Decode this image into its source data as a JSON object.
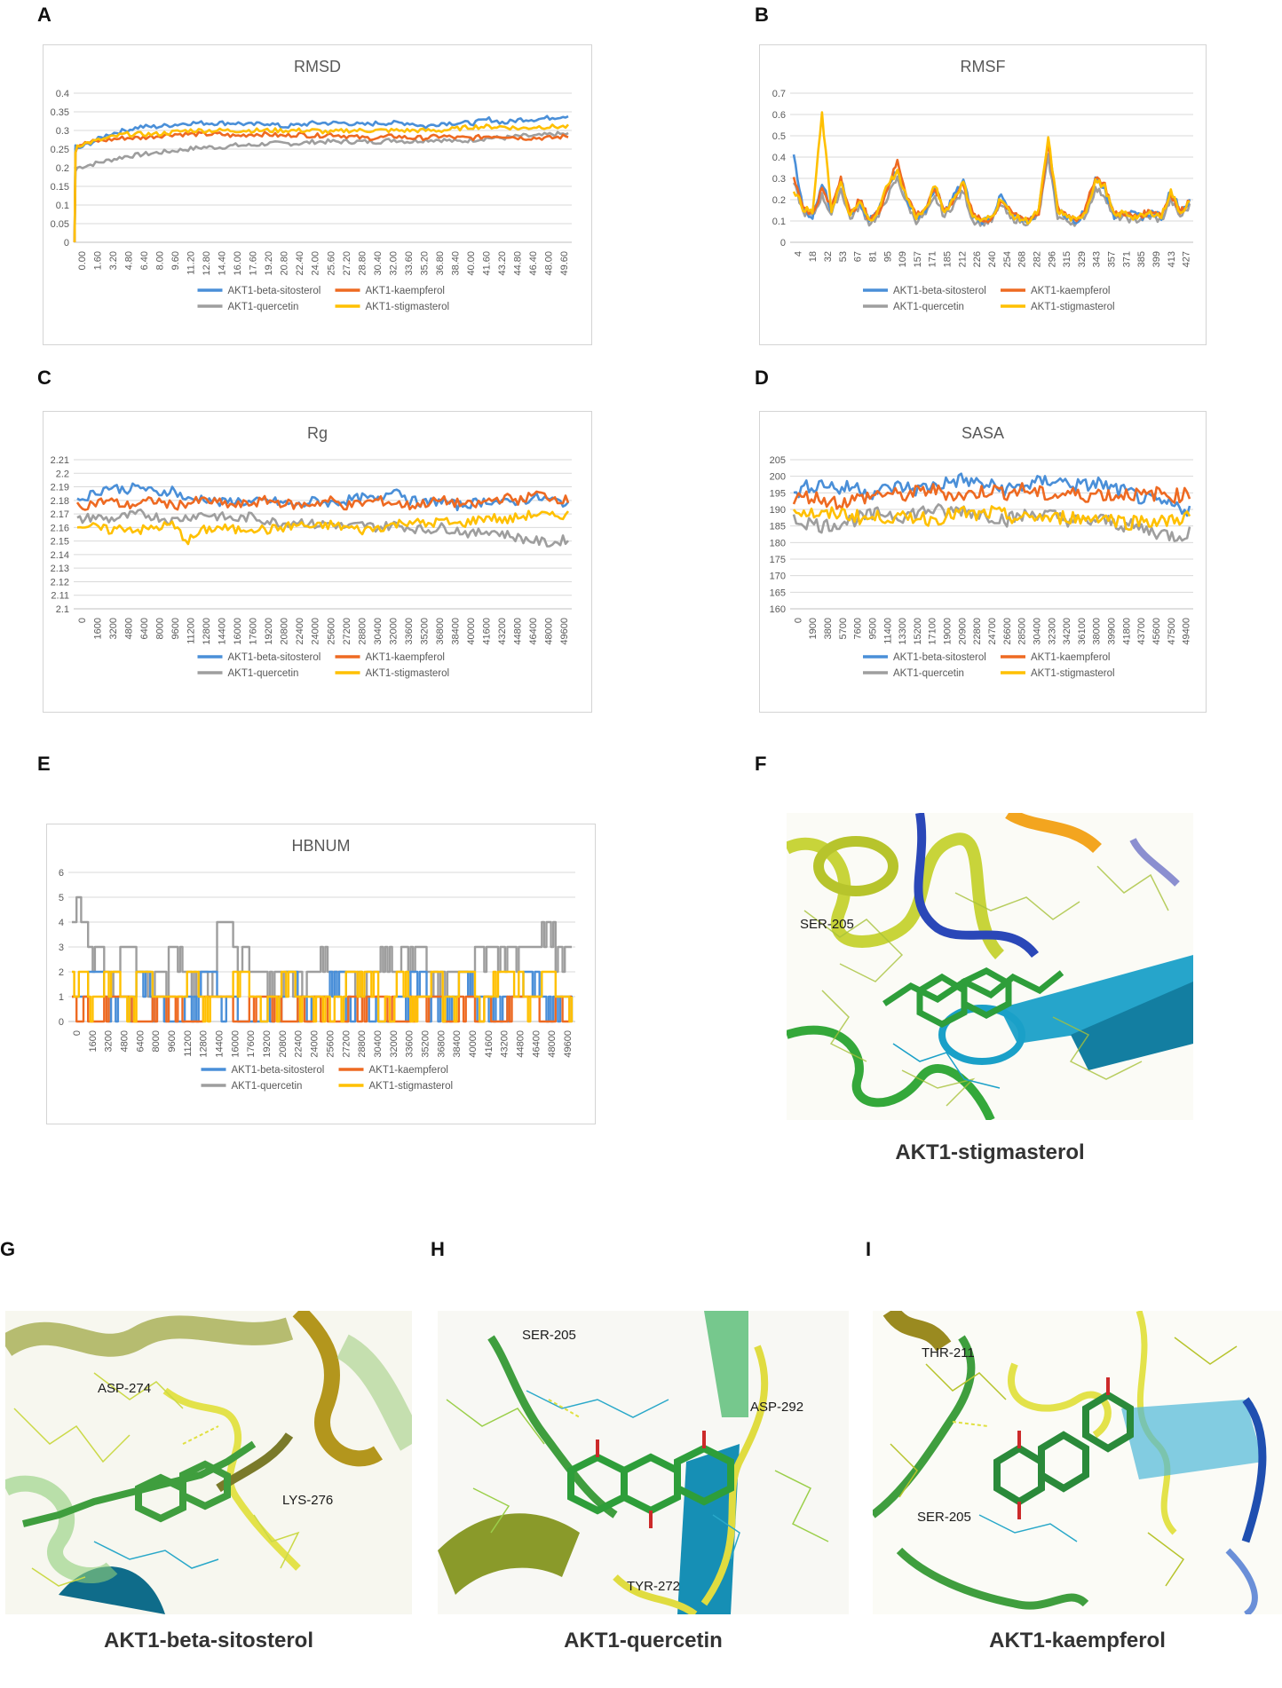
{
  "panels": {
    "A": "A",
    "B": "B",
    "C": "C",
    "D": "D",
    "E": "E",
    "F": "F",
    "G": "G",
    "H": "H",
    "I": "I"
  },
  "colors": {
    "beta_sitosterol": "#4a8fd8",
    "kaempferol": "#ee6a22",
    "quercetin": "#9e9e9e",
    "stigmasterol": "#ffc000"
  },
  "legend": [
    "AKT1-beta-sitosterol",
    "AKT1-kaempferol",
    "AKT1-quercetin",
    "AKT1-stigmasterol"
  ],
  "chart_data": [
    {
      "id": "rmsd",
      "type": "line",
      "title": "RMSD",
      "ylim": [
        0,
        0.4
      ],
      "yticks": [
        "0",
        "0.05",
        "0.1",
        "0.15",
        "0.2",
        "0.25",
        "0.3",
        "0.35",
        "0.4"
      ],
      "xticks": [
        "0.00",
        "1.60",
        "3.20",
        "4.80",
        "6.40",
        "8.00",
        "9.60",
        "11.20",
        "12.80",
        "14.40",
        "16.00",
        "17.60",
        "19.20",
        "20.80",
        "22.40",
        "24.00",
        "25.60",
        "27.20",
        "28.80",
        "30.40",
        "32.00",
        "33.60",
        "35.20",
        "36.80",
        "38.40",
        "40.00",
        "41.60",
        "43.20",
        "44.80",
        "46.40",
        "48.00",
        "49.60"
      ],
      "series": [
        {
          "name": "AKT1-beta-sitosterol",
          "start": 0.26,
          "values": [
            0.25,
            0.27,
            0.29,
            0.3,
            0.31,
            0.31,
            0.315,
            0.32,
            0.32,
            0.32,
            0.32,
            0.315,
            0.32,
            0.31,
            0.315,
            0.32,
            0.32,
            0.32,
            0.315,
            0.32,
            0.32,
            0.32,
            0.31,
            0.32,
            0.32,
            0.32,
            0.33,
            0.32,
            0.33,
            0.33,
            0.335,
            0.34
          ]
        },
        {
          "name": "AKT1-kaempferol",
          "start": 0.24,
          "values": [
            0.26,
            0.27,
            0.275,
            0.28,
            0.28,
            0.285,
            0.29,
            0.29,
            0.29,
            0.29,
            0.285,
            0.29,
            0.29,
            0.285,
            0.29,
            0.285,
            0.29,
            0.285,
            0.28,
            0.28,
            0.285,
            0.28,
            0.28,
            0.285,
            0.28,
            0.28,
            0.285,
            0.285,
            0.28,
            0.28,
            0.28,
            0.285
          ]
        },
        {
          "name": "AKT1-quercetin",
          "start": 0.19,
          "values": [
            0.2,
            0.21,
            0.22,
            0.23,
            0.235,
            0.24,
            0.245,
            0.25,
            0.255,
            0.255,
            0.26,
            0.26,
            0.265,
            0.265,
            0.265,
            0.27,
            0.27,
            0.27,
            0.27,
            0.27,
            0.275,
            0.27,
            0.275,
            0.275,
            0.27,
            0.275,
            0.28,
            0.28,
            0.285,
            0.285,
            0.29,
            0.29
          ]
        },
        {
          "name": "AKT1-stigmasterol",
          "start": 0.24,
          "values": [
            0.26,
            0.27,
            0.28,
            0.29,
            0.29,
            0.29,
            0.295,
            0.3,
            0.3,
            0.3,
            0.3,
            0.3,
            0.3,
            0.3,
            0.3,
            0.3,
            0.295,
            0.3,
            0.3,
            0.3,
            0.3,
            0.3,
            0.3,
            0.3,
            0.305,
            0.31,
            0.31,
            0.31,
            0.305,
            0.31,
            0.31,
            0.31
          ]
        }
      ]
    },
    {
      "id": "rmsf",
      "type": "line",
      "title": "RMSF",
      "ylim": [
        0,
        0.7
      ],
      "yticks": [
        "0",
        "0.1",
        "0.2",
        "0.3",
        "0.4",
        "0.5",
        "0.6",
        "0.7"
      ],
      "xticks": [
        "4",
        "18",
        "32",
        "53",
        "67",
        "81",
        "95",
        "109",
        "157",
        "171",
        "185",
        "212",
        "226",
        "240",
        "254",
        "268",
        "282",
        "296",
        "315",
        "329",
        "343",
        "357",
        "371",
        "385",
        "399",
        "413",
        "427"
      ],
      "series": [
        {
          "name": "AKT1-beta-sitosterol",
          "values": [
            0.42,
            0.15,
            0.12,
            0.28,
            0.15,
            0.3,
            0.12,
            0.18,
            0.1,
            0.15,
            0.27,
            0.35,
            0.2,
            0.12,
            0.15,
            0.26,
            0.14,
            0.22,
            0.29,
            0.12,
            0.1,
            0.12,
            0.22,
            0.13,
            0.11,
            0.1,
            0.15,
            0.47,
            0.15,
            0.12,
            0.1,
            0.15,
            0.3,
            0.25,
            0.12,
            0.15,
            0.13,
            0.12,
            0.14,
            0.12,
            0.25,
            0.15,
            0.19
          ]
        },
        {
          "name": "AKT1-kaempferol",
          "values": [
            0.3,
            0.17,
            0.13,
            0.25,
            0.16,
            0.31,
            0.13,
            0.2,
            0.11,
            0.14,
            0.26,
            0.38,
            0.22,
            0.13,
            0.16,
            0.25,
            0.15,
            0.2,
            0.28,
            0.13,
            0.1,
            0.11,
            0.2,
            0.14,
            0.12,
            0.11,
            0.14,
            0.46,
            0.16,
            0.13,
            0.11,
            0.16,
            0.31,
            0.27,
            0.13,
            0.14,
            0.12,
            0.13,
            0.15,
            0.13,
            0.23,
            0.14,
            0.2
          ]
        },
        {
          "name": "AKT1-quercetin",
          "values": [
            0.28,
            0.14,
            0.12,
            0.22,
            0.13,
            0.25,
            0.11,
            0.17,
            0.09,
            0.12,
            0.22,
            0.3,
            0.18,
            0.1,
            0.13,
            0.21,
            0.12,
            0.18,
            0.24,
            0.1,
            0.09,
            0.1,
            0.18,
            0.11,
            0.1,
            0.09,
            0.13,
            0.4,
            0.12,
            0.1,
            0.09,
            0.13,
            0.25,
            0.22,
            0.11,
            0.12,
            0.1,
            0.11,
            0.12,
            0.1,
            0.2,
            0.12,
            0.17
          ]
        },
        {
          "name": "AKT1-stigmasterol",
          "values": [
            0.25,
            0.16,
            0.14,
            0.6,
            0.15,
            0.28,
            0.12,
            0.19,
            0.1,
            0.15,
            0.28,
            0.33,
            0.21,
            0.12,
            0.15,
            0.27,
            0.14,
            0.21,
            0.28,
            0.12,
            0.1,
            0.12,
            0.21,
            0.13,
            0.11,
            0.1,
            0.15,
            0.49,
            0.15,
            0.12,
            0.1,
            0.15,
            0.29,
            0.26,
            0.12,
            0.14,
            0.12,
            0.12,
            0.14,
            0.12,
            0.24,
            0.14,
            0.19
          ]
        }
      ]
    },
    {
      "id": "rg",
      "type": "line",
      "title": "Rg",
      "ylim": [
        2.1,
        2.21
      ],
      "yticks": [
        "2.1",
        "2.11",
        "2.12",
        "2.13",
        "2.14",
        "2.15",
        "2.16",
        "2.17",
        "2.18",
        "2.19",
        "2.2",
        "2.21"
      ],
      "xticks": [
        "0",
        "1600",
        "3200",
        "4800",
        "6400",
        "8000",
        "9600",
        "11200",
        "12800",
        "14400",
        "16000",
        "17600",
        "19200",
        "20800",
        "22400",
        "24000",
        "25600",
        "27200",
        "28800",
        "30400",
        "32000",
        "33600",
        "35200",
        "36800",
        "38400",
        "40000",
        "41600",
        "43200",
        "44800",
        "46400",
        "48000",
        "49600"
      ],
      "series": [
        {
          "name": "AKT1-beta-sitosterol",
          "values": [
            2.18,
            2.185,
            2.19,
            2.188,
            2.19,
            2.185,
            2.188,
            2.18,
            2.182,
            2.178,
            2.18,
            2.178,
            2.18,
            2.178,
            2.176,
            2.18,
            2.178,
            2.18,
            2.182,
            2.18,
            2.19,
            2.18,
            2.178,
            2.18,
            2.176,
            2.178,
            2.18,
            2.178,
            2.18,
            2.182,
            2.18,
            2.178
          ]
        },
        {
          "name": "AKT1-kaempferol",
          "values": [
            2.175,
            2.178,
            2.18,
            2.176,
            2.178,
            2.18,
            2.176,
            2.178,
            2.18,
            2.178,
            2.176,
            2.178,
            2.18,
            2.178,
            2.176,
            2.178,
            2.18,
            2.176,
            2.178,
            2.18,
            2.178,
            2.176,
            2.178,
            2.18,
            2.178,
            2.176,
            2.18,
            2.182,
            2.18,
            2.185,
            2.182,
            2.18
          ]
        },
        {
          "name": "AKT1-quercetin",
          "values": [
            2.165,
            2.168,
            2.166,
            2.168,
            2.17,
            2.168,
            2.165,
            2.168,
            2.17,
            2.168,
            2.166,
            2.168,
            2.165,
            2.163,
            2.165,
            2.162,
            2.163,
            2.16,
            2.162,
            2.16,
            2.162,
            2.16,
            2.158,
            2.16,
            2.158,
            2.155,
            2.158,
            2.155,
            2.152,
            2.15,
            2.148,
            2.152
          ]
        },
        {
          "name": "AKT1-stigmasterol",
          "values": [
            2.162,
            2.16,
            2.158,
            2.16,
            2.158,
            2.16,
            2.162,
            2.15,
            2.158,
            2.16,
            2.158,
            2.16,
            2.158,
            2.16,
            2.162,
            2.16,
            2.162,
            2.16,
            2.158,
            2.16,
            2.162,
            2.165,
            2.162,
            2.165,
            2.162,
            2.165,
            2.168,
            2.165,
            2.168,
            2.17,
            2.168,
            2.17
          ]
        }
      ]
    },
    {
      "id": "sasa",
      "type": "line",
      "title": "SASA",
      "ylim": [
        160,
        205
      ],
      "yticks": [
        "160",
        "165",
        "170",
        "175",
        "180",
        "185",
        "190",
        "195",
        "200",
        "205"
      ],
      "xticks": [
        "0",
        "1900",
        "3800",
        "5700",
        "7600",
        "9500",
        "11400",
        "13300",
        "15200",
        "17100",
        "19000",
        "20900",
        "22800",
        "24700",
        "26600",
        "28500",
        "30400",
        "32300",
        "34200",
        "36100",
        "38000",
        "39900",
        "41800",
        "43700",
        "45600",
        "47500",
        "49400"
      ],
      "series": [
        {
          "name": "AKT1-beta-sitosterol",
          "values": [
            195,
            197,
            198,
            196,
            197,
            195,
            196,
            197,
            196,
            197,
            198,
            199,
            198,
            197,
            196,
            197,
            198,
            199,
            198,
            197,
            198,
            196,
            195,
            193,
            192,
            191,
            190
          ]
        },
        {
          "name": "AKT1-kaempferol",
          "values": [
            193,
            194,
            193,
            192,
            193,
            194,
            195,
            194,
            195,
            196,
            195,
            194,
            195,
            196,
            195,
            196,
            195,
            194,
            195,
            194,
            195,
            194,
            195,
            194,
            195,
            194,
            195
          ]
        },
        {
          "name": "AKT1-quercetin",
          "values": [
            187,
            186,
            185,
            186,
            187,
            188,
            189,
            188,
            189,
            190,
            189,
            190,
            189,
            188,
            187,
            188,
            189,
            188,
            187,
            186,
            187,
            186,
            185,
            184,
            183,
            182,
            183
          ]
        },
        {
          "name": "AKT1-stigmasterol",
          "values": [
            190,
            189,
            188,
            189,
            188,
            187,
            188,
            187,
            188,
            187,
            188,
            189,
            188,
            189,
            188,
            187,
            188,
            187,
            188,
            187,
            188,
            187,
            186,
            187,
            186,
            187,
            188
          ]
        }
      ]
    },
    {
      "id": "hbnum",
      "type": "line",
      "title": "HBNUM",
      "ylim": [
        0,
        6
      ],
      "yticks": [
        "0",
        "1",
        "2",
        "3",
        "4",
        "5",
        "6"
      ],
      "xticks": [
        "0",
        "1600",
        "3200",
        "4800",
        "6400",
        "8000",
        "9600",
        "11200",
        "12800",
        "14400",
        "16000",
        "17600",
        "19200",
        "20800",
        "22400",
        "24000",
        "25600",
        "27200",
        "28800",
        "30400",
        "32000",
        "33600",
        "35200",
        "36800",
        "38400",
        "40000",
        "41600",
        "43200",
        "44800",
        "46400",
        "48000",
        "49600"
      ],
      "series": [
        {
          "name": "AKT1-beta-sitosterol",
          "values": [
            1,
            2,
            1,
            1,
            2,
            1,
            0,
            1,
            2,
            1,
            1,
            0,
            1,
            2,
            1,
            1,
            2,
            1,
            1,
            0,
            1,
            2,
            1,
            1,
            2,
            1,
            1,
            1,
            2,
            1,
            1,
            0
          ]
        },
        {
          "name": "AKT1-kaempferol",
          "values": [
            1,
            0,
            1,
            1,
            0,
            1,
            1,
            0,
            1,
            1,
            0,
            1,
            1,
            0,
            1,
            1,
            0,
            1,
            1,
            1,
            0,
            1,
            1,
            0,
            1,
            1,
            0,
            1,
            1,
            0,
            1,
            1
          ]
        },
        {
          "name": "AKT1-quercetin",
          "values": [
            5,
            3,
            2,
            3,
            2,
            2,
            3,
            2,
            2,
            4,
            3,
            2,
            2,
            2,
            2,
            3,
            2,
            2,
            2,
            3,
            3,
            3,
            2,
            2,
            2,
            3,
            3,
            3,
            3,
            4,
            3,
            3
          ]
        },
        {
          "name": "AKT1-stigmasterol",
          "values": [
            2,
            1,
            2,
            1,
            2,
            1,
            1,
            2,
            1,
            1,
            2,
            1,
            1,
            2,
            1,
            1,
            1,
            2,
            2,
            1,
            2,
            1,
            2,
            1,
            2,
            1,
            2,
            2,
            1,
            2,
            1,
            2
          ]
        }
      ]
    }
  ],
  "structures": {
    "F": {
      "caption": "AKT1-stigmasterol",
      "labels": [
        "SER-205"
      ]
    },
    "G": {
      "caption": "AKT1-beta-sitosterol",
      "labels": [
        "ASP-274",
        "LYS-276"
      ]
    },
    "H": {
      "caption": "AKT1-quercetin",
      "labels": [
        "SER-205",
        "ASP-292",
        "TYR-272"
      ]
    },
    "I": {
      "caption": "AKT1-kaempferol",
      "labels": [
        "THR-211",
        "SER-205"
      ]
    }
  }
}
